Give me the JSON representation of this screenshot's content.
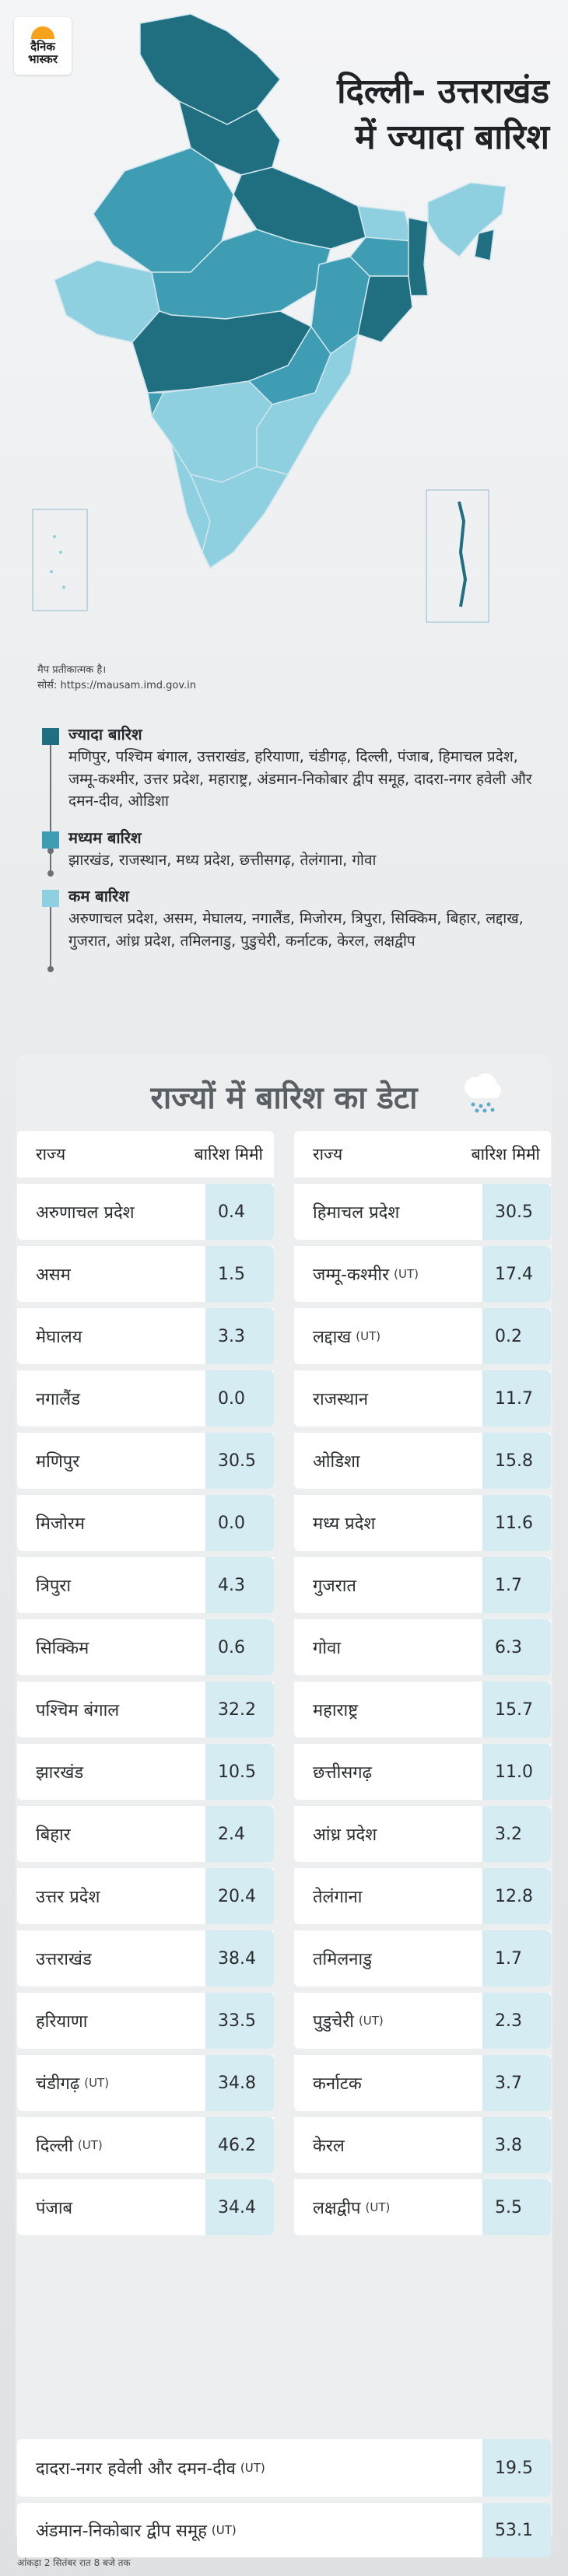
{
  "brand": {
    "line1": "दैनिक",
    "line2": "भास्कर"
  },
  "headline": {
    "line1": "दिल्ली- उत्तराखंड",
    "line2": "में ज्यादा बारिश"
  },
  "map_note": {
    "line1": "मैप प्रतीकात्मक है।",
    "line2": "सोर्स: https://mausam.imd.gov.in"
  },
  "colors": {
    "heavy": "#1f6f80",
    "medium": "#3f9db3",
    "low": "#8fd0e0",
    "value_cell": "#d6ecf3"
  },
  "legend": [
    {
      "title": "ज्यादा बारिश",
      "text": "मणिपुर, पश्चिम बंगाल, उत्तराखंड, हरियाणा, चंडीगढ़, दिल्ली, पंजाब, हिमाचल प्रदेश, जम्मू-कश्मीर, उत्तर प्रदेश, महाराष्ट्र, अंडमान-निकोबार द्वीप समूह, दादरा-नगर हवेली और दमन-दीव, ओडिशा"
    },
    {
      "title": "मध्यम बारिश",
      "text": "झारखंड, राजस्थान, मध्य प्रदेश, छत्तीसगढ़, तेलंगाना, गोवा"
    },
    {
      "title": "कम बारिश",
      "text": "अरुणाचल प्रदेश, असम, मेघालय, नगालैंड, मिजोरम, त्रिपुरा, सिक्किम, बिहार, लद्दाख, गुजरात, आंध्र प्रदेश, तमिलनाडु, पुडुचेरी, कर्नाटक, केरल, लक्षद्वीप"
    }
  ],
  "table": {
    "heading": "राज्यों में बारिश का डेटा",
    "col_state": "राज्य",
    "col_rain": "बारिश मिमी",
    "left": [
      {
        "name": "अरुणाचल प्रदेश",
        "ut": "",
        "value": "0.4"
      },
      {
        "name": "असम",
        "ut": "",
        "value": "1.5"
      },
      {
        "name": "मेघालय",
        "ut": "",
        "value": "3.3"
      },
      {
        "name": "नगालैंड",
        "ut": "",
        "value": "0.0"
      },
      {
        "name": "मणिपुर",
        "ut": "",
        "value": "30.5"
      },
      {
        "name": "मिजोरम",
        "ut": "",
        "value": "0.0"
      },
      {
        "name": "त्रिपुरा",
        "ut": "",
        "value": "4.3"
      },
      {
        "name": "सिक्किम",
        "ut": "",
        "value": "0.6"
      },
      {
        "name": "पश्चिम बंगाल",
        "ut": "",
        "value": "32.2"
      },
      {
        "name": "झारखंड",
        "ut": "",
        "value": "10.5"
      },
      {
        "name": "बिहार",
        "ut": "",
        "value": "2.4"
      },
      {
        "name": "उत्तर प्रदेश",
        "ut": "",
        "value": "20.4"
      },
      {
        "name": "उत्तराखंड",
        "ut": "",
        "value": "38.4"
      },
      {
        "name": "हरियाणा",
        "ut": "",
        "value": "33.5"
      },
      {
        "name": "चंडीगढ़",
        "ut": "(UT)",
        "value": "34.8"
      },
      {
        "name": "दिल्ली",
        "ut": "(UT)",
        "value": "46.2"
      },
      {
        "name": "पंजाब",
        "ut": "",
        "value": "34.4"
      }
    ],
    "right": [
      {
        "name": "हिमाचल प्रदेश",
        "ut": "",
        "value": "30.5"
      },
      {
        "name": "जम्मू-कश्मीर",
        "ut": "(UT)",
        "value": "17.4"
      },
      {
        "name": "लद्दाख",
        "ut": "(UT)",
        "value": "0.2"
      },
      {
        "name": "राजस्थान",
        "ut": "",
        "value": "11.7"
      },
      {
        "name": "ओडिशा",
        "ut": "",
        "value": "15.8"
      },
      {
        "name": "मध्य प्रदेश",
        "ut": "",
        "value": "11.6"
      },
      {
        "name": "गुजरात",
        "ut": "",
        "value": "1.7"
      },
      {
        "name": "गोवा",
        "ut": "",
        "value": "6.3"
      },
      {
        "name": "महाराष्ट्र",
        "ut": "",
        "value": "15.7"
      },
      {
        "name": "छत्तीसगढ़",
        "ut": "",
        "value": "11.0"
      },
      {
        "name": "आंध्र प्रदेश",
        "ut": "",
        "value": "3.2"
      },
      {
        "name": "तेलंगाना",
        "ut": "",
        "value": "12.8"
      },
      {
        "name": "तमिलनाडु",
        "ut": "",
        "value": "1.7"
      },
      {
        "name": "पुडुचेरी",
        "ut": "(UT)",
        "value": "2.3"
      },
      {
        "name": "कर्नाटक",
        "ut": "",
        "value": "3.7"
      },
      {
        "name": "केरल",
        "ut": "",
        "value": "3.8"
      },
      {
        "name": "लक्षद्वीप",
        "ut": "(UT)",
        "value": "5.5"
      }
    ],
    "wide": [
      {
        "name": "दादरा-नगर हवेली और दमन-दीव",
        "ut": "(UT)",
        "value": "19.5"
      },
      {
        "name": "अंडमान-निकोबार द्वीप समूह",
        "ut": "(UT)",
        "value": "53.1"
      }
    ]
  },
  "footnote": "आंकड़ा 2 सितंबर रात 8 बजे तक"
}
